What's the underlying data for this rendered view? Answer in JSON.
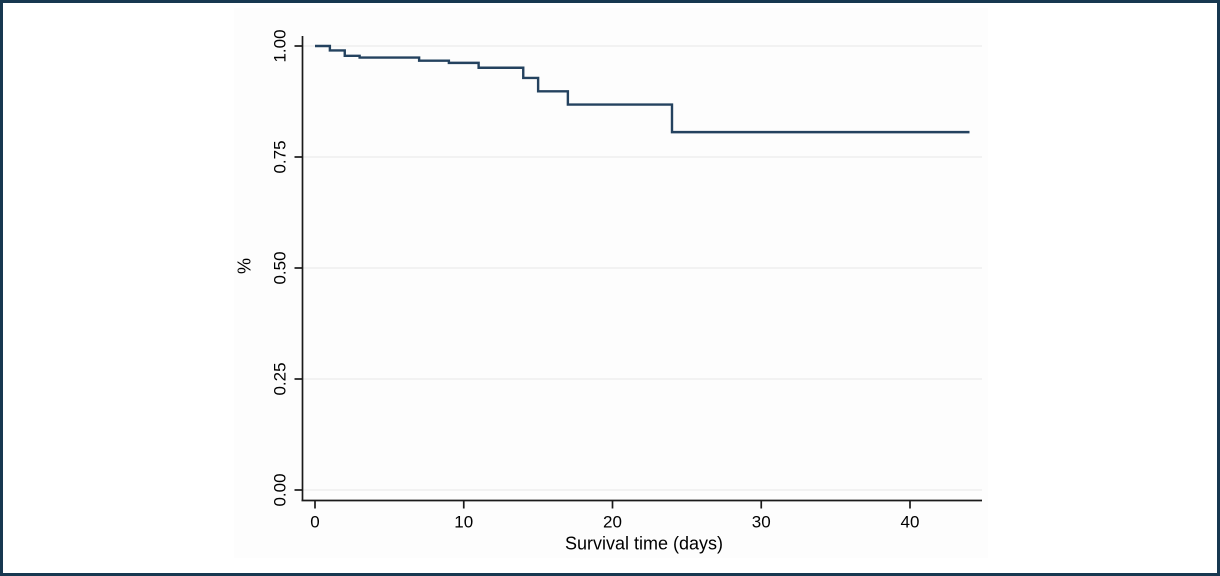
{
  "figure": {
    "description": "Kaplan-Meier survival curve",
    "background_color": "#ffffff",
    "border_color": "#173850"
  },
  "chart_data": {
    "type": "line",
    "subtype": "kaplan-meier-step",
    "title": "",
    "xlabel": "Survival time (days)",
    "ylabel": "%",
    "x_ticks": [
      0,
      10,
      20,
      30,
      40
    ],
    "y_tick_labels": [
      "0.00",
      "0.25",
      "0.50",
      "0.75",
      "1.00"
    ],
    "xlim": [
      0,
      45
    ],
    "ylim": [
      0,
      1
    ],
    "grid": true,
    "legend": "none",
    "line_color": "#24425f",
    "grid_color": "#efefef",
    "axis_color": "#1a1a1a",
    "points": [
      {
        "day": 0,
        "survival": 1.0
      },
      {
        "day": 1,
        "survival": 0.99
      },
      {
        "day": 2,
        "survival": 0.978
      },
      {
        "day": 3,
        "survival": 0.974
      },
      {
        "day": 7,
        "survival": 0.967
      },
      {
        "day": 9,
        "survival": 0.962
      },
      {
        "day": 11,
        "survival": 0.951
      },
      {
        "day": 14,
        "survival": 0.928
      },
      {
        "day": 15,
        "survival": 0.898
      },
      {
        "day": 17,
        "survival": 0.868
      },
      {
        "day": 24,
        "survival": 0.806
      }
    ],
    "curve_end_day": 44
  }
}
